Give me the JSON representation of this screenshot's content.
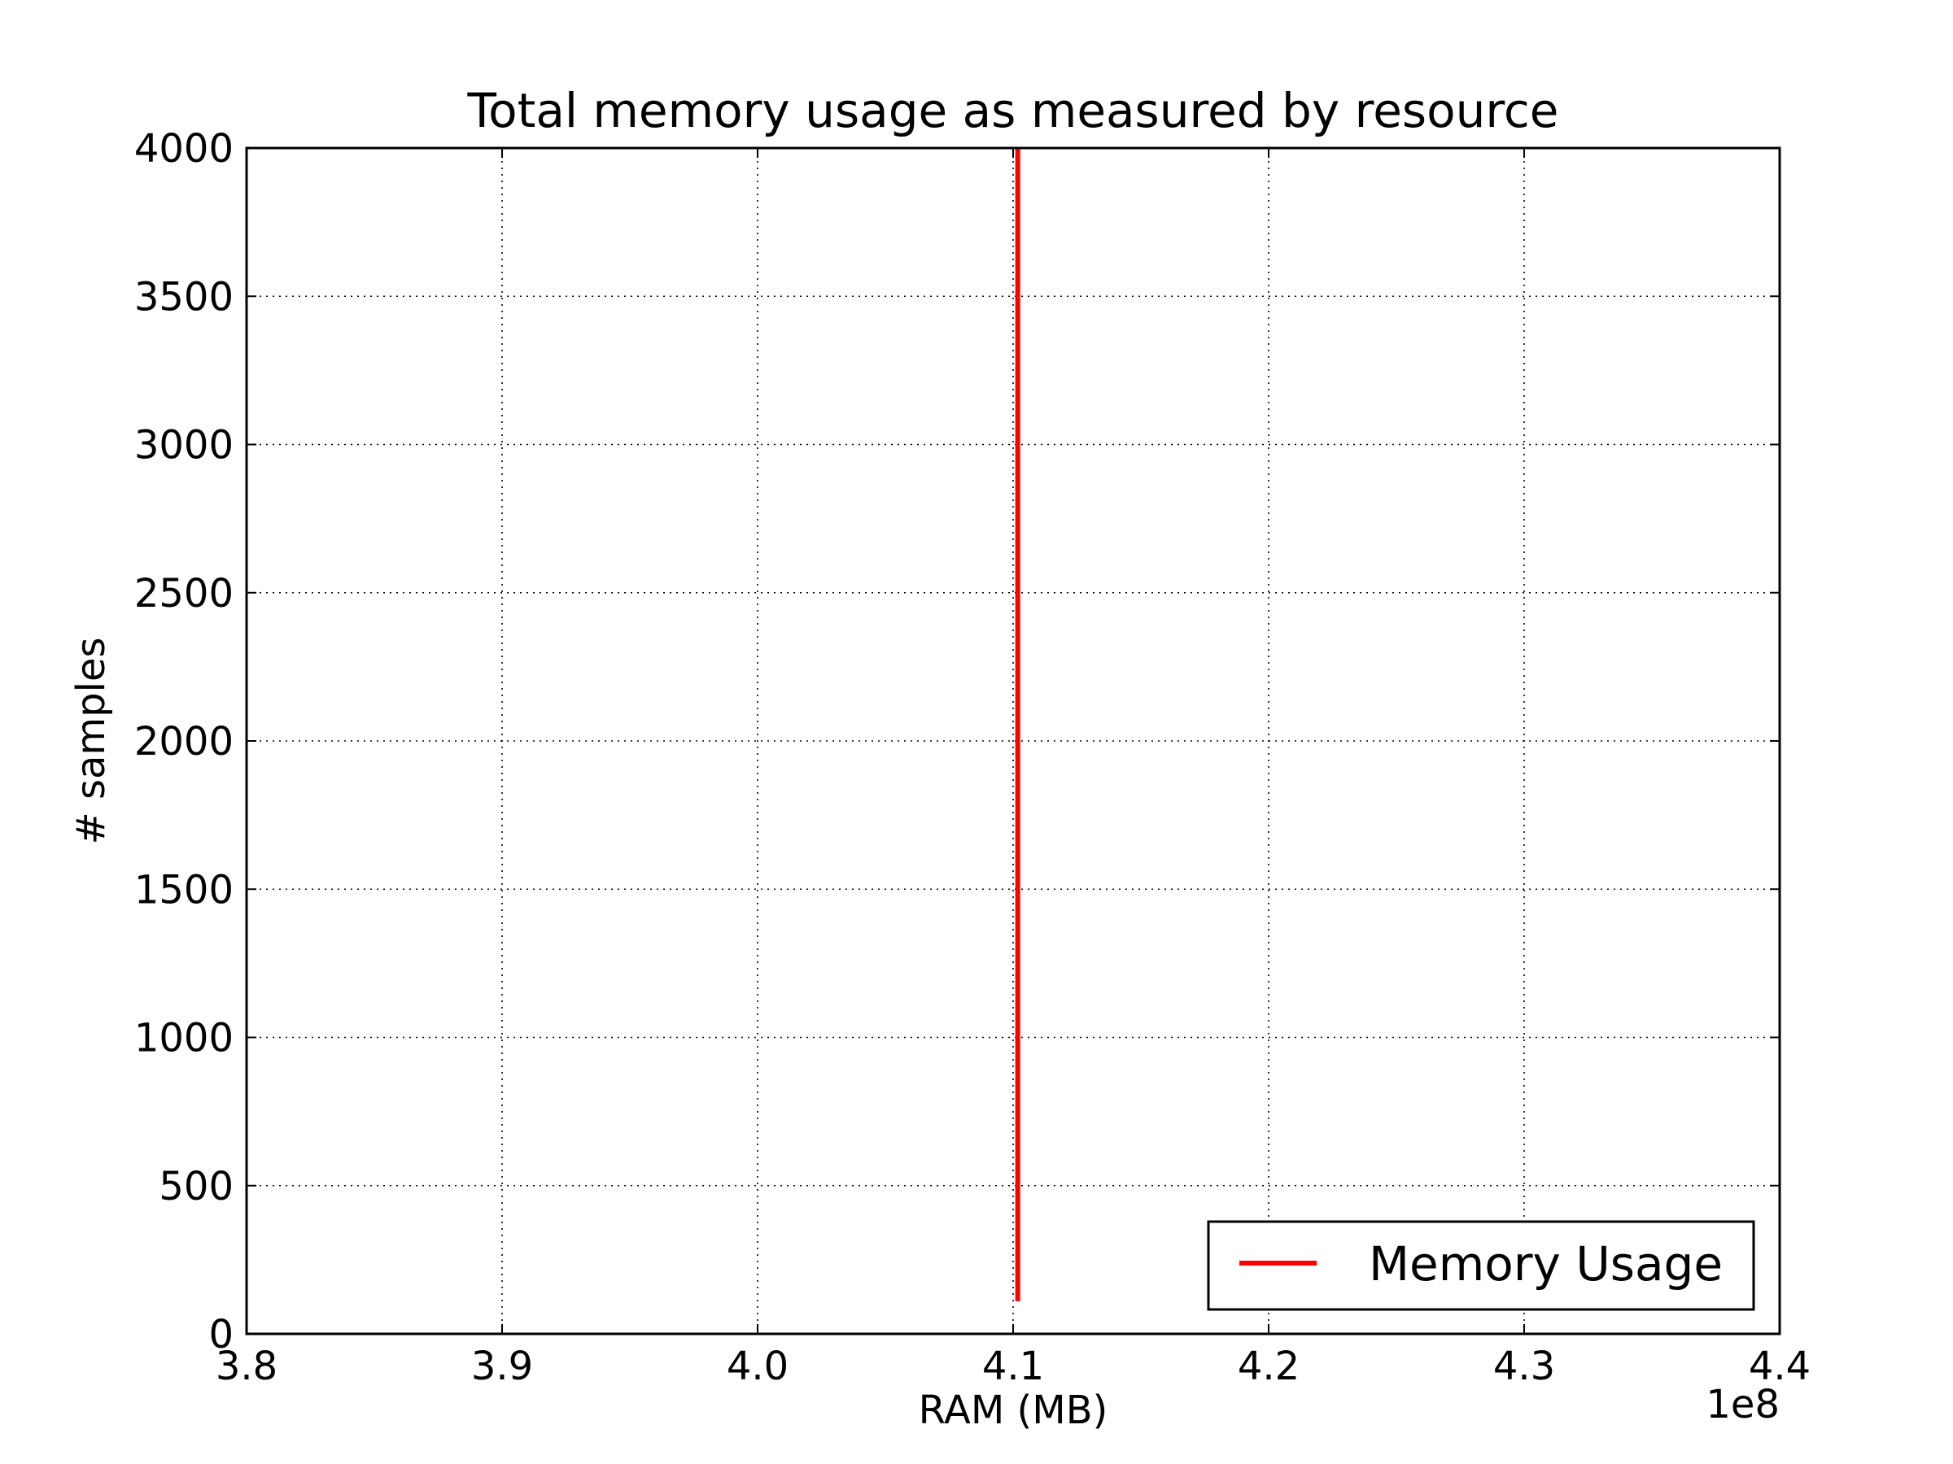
{
  "chart_data": {
    "type": "line",
    "title": "Total memory usage as measured by resource",
    "xlabel": "RAM (MB)",
    "ylabel": "# samples",
    "x_offset_label": "1e8",
    "xlim": [
      3.8,
      4.4
    ],
    "ylim": [
      0,
      4000
    ],
    "x_ticks": [
      3.8,
      3.9,
      4.0,
      4.1,
      4.2,
      4.3,
      4.4
    ],
    "x_tick_labels": [
      "3.8",
      "3.9",
      "4.0",
      "4.1",
      "4.2",
      "4.3",
      "4.4"
    ],
    "y_ticks": [
      0,
      500,
      1000,
      1500,
      2000,
      2500,
      3000,
      3500,
      4000
    ],
    "y_tick_labels": [
      "0",
      "500",
      "1000",
      "1500",
      "2000",
      "2500",
      "3000",
      "3500",
      "4000"
    ],
    "grid": true,
    "legend_position": "lower-right",
    "series": [
      {
        "name": "Memory Usage",
        "color": "#ff0000",
        "x": [
          4.1018,
          4.1018,
          4.1018,
          4.1018
        ],
        "y": [
          110,
          1500,
          3000,
          4000
        ]
      }
    ]
  }
}
